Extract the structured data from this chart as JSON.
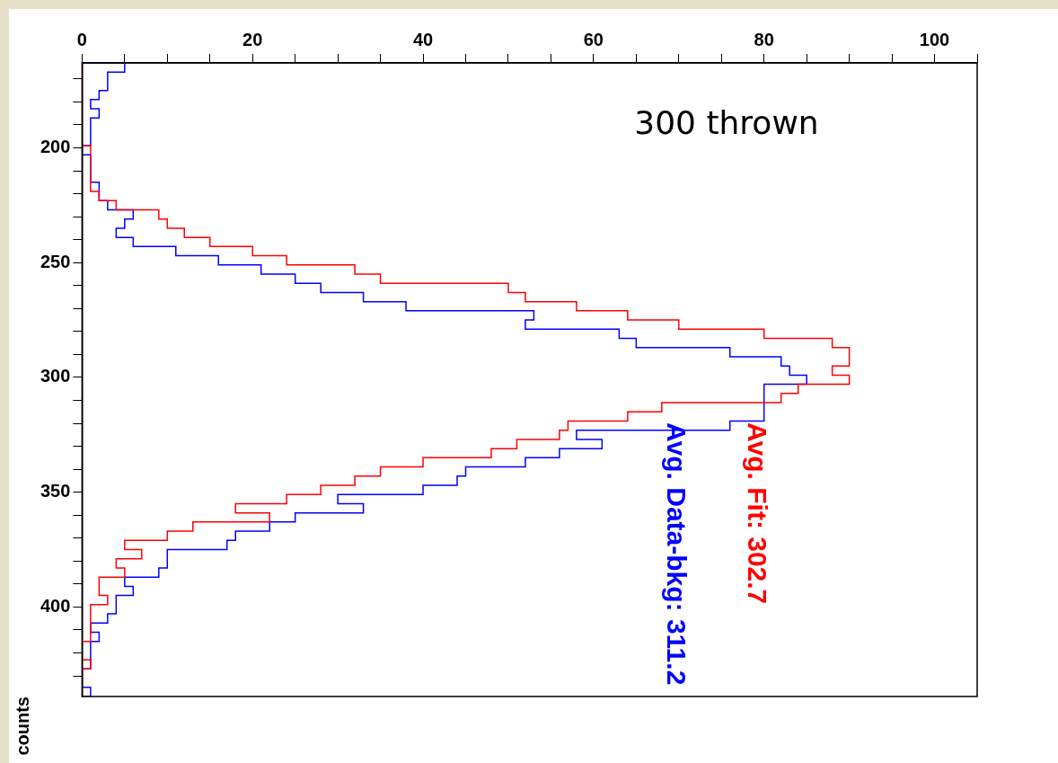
{
  "chart_data": {
    "type": "histogram",
    "orientation": "horizontal",
    "ylabel": "counts",
    "annotations": [
      "300 thrown",
      "Avg. Fit: 302.7",
      "Avg. Data-bkg: 311.2"
    ],
    "bins": [
      163,
      167,
      171,
      175,
      179,
      183,
      187,
      191,
      195,
      199,
      203,
      207,
      211,
      215,
      219,
      223,
      227,
      231,
      235,
      239,
      243,
      247,
      251,
      255,
      259,
      263,
      267,
      271,
      275,
      279,
      283,
      287,
      291,
      295,
      299,
      303,
      307,
      311,
      315,
      319,
      323,
      327,
      331,
      335,
      339,
      343,
      347,
      351,
      355,
      359,
      363,
      367,
      371,
      375,
      379,
      383,
      387,
      391,
      395,
      399,
      403,
      407,
      411,
      415,
      419,
      423,
      427,
      431,
      435,
      439
    ],
    "series": [
      {
        "color": "#ff0000",
        "values": [
          0,
          0,
          0,
          0,
          0,
          0,
          0,
          0,
          0,
          1,
          1,
          1,
          1,
          1,
          2,
          4,
          9,
          10,
          12,
          15,
          20,
          24,
          32,
          35,
          50,
          52,
          58,
          64,
          70,
          80,
          88,
          90,
          90,
          88,
          90,
          84,
          82,
          68,
          64,
          57,
          56,
          51,
          48,
          40,
          35,
          32,
          28,
          24,
          18,
          22,
          13,
          10,
          5,
          7,
          4,
          5,
          2,
          2,
          3,
          1,
          1,
          1,
          1,
          0,
          0,
          1,
          0,
          0,
          0
        ]
      },
      {
        "color": "#0000ff",
        "values": [
          5,
          3,
          3,
          2,
          1,
          2,
          1,
          1,
          1,
          0,
          1,
          1,
          1,
          2,
          2,
          3,
          6,
          5,
          4,
          6,
          11,
          16,
          21,
          25,
          28,
          33,
          38,
          53,
          52,
          63,
          65,
          76,
          82,
          83,
          85,
          80,
          80,
          80,
          80,
          76,
          58,
          61,
          56,
          52,
          45,
          44,
          40,
          30,
          33,
          25,
          22,
          18,
          17,
          10,
          10,
          9,
          5,
          6,
          4,
          4,
          3,
          1,
          2,
          1,
          1,
          1,
          0,
          0,
          1
        ]
      }
    ],
    "xlim": [
      0,
      105
    ],
    "xticks": [
      0,
      {
        "value": 5,
        "label": null
      },
      {
        "value": 10,
        "label": null
      },
      {
        "value": 15,
        "label": null
      },
      20,
      {
        "value": 25,
        "label": null
      },
      {
        "value": 30,
        "label": null
      },
      {
        "value": 35,
        "label": null
      },
      40,
      {
        "value": 45,
        "label": null
      },
      {
        "value": 50,
        "label": null
      },
      {
        "value": 55,
        "label": null
      },
      60,
      {
        "value": 65,
        "label": null
      },
      {
        "value": 70,
        "label": null
      },
      {
        "value": 75,
        "label": null
      },
      80,
      {
        "value": 85,
        "label": null
      },
      {
        "value": 90,
        "label": null
      },
      {
        "value": 95,
        "label": null
      },
      100,
      {
        "value": 105,
        "label": null
      }
    ],
    "ylim": [
      439,
      163
    ],
    "yticks": [
      {
        "value": 170,
        "label": null
      },
      {
        "value": 180,
        "label": null
      },
      {
        "value": 190,
        "label": null
      },
      200,
      {
        "value": 210,
        "label": null
      },
      {
        "value": 220,
        "label": null
      },
      {
        "value": 230,
        "label": null
      },
      {
        "value": 240,
        "label": null
      },
      250,
      {
        "value": 260,
        "label": null
      },
      {
        "value": 270,
        "label": null
      },
      {
        "value": 280,
        "label": null
      },
      {
        "value": 290,
        "label": null
      },
      300,
      {
        "value": 310,
        "label": null
      },
      {
        "value": 320,
        "label": null
      },
      {
        "value": 330,
        "label": null
      },
      {
        "value": 340,
        "label": null
      },
      350,
      {
        "value": 360,
        "label": null
      },
      {
        "value": 370,
        "label": null
      },
      {
        "value": 380,
        "label": null
      },
      {
        "value": 390,
        "label": null
      },
      400,
      {
        "value": 410,
        "label": null
      },
      {
        "value": 420,
        "label": null
      },
      {
        "value": 430,
        "label": null
      }
    ]
  }
}
